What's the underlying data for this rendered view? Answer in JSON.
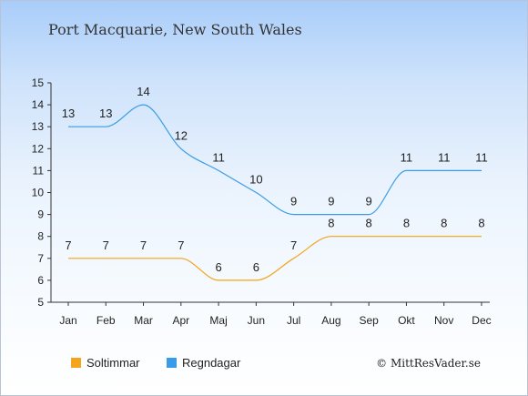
{
  "chart_data": {
    "type": "line",
    "title": "Port Macquarie, New South Wales",
    "categories": [
      "Jan",
      "Feb",
      "Mar",
      "Apr",
      "Maj",
      "Jun",
      "Jul",
      "Aug",
      "Sep",
      "Okt",
      "Nov",
      "Dec"
    ],
    "ylim": [
      5,
      15
    ],
    "yticks": [
      "5",
      "6",
      "7",
      "8",
      "9",
      "10",
      "11",
      "12",
      "13",
      "14",
      "15"
    ],
    "series": [
      {
        "name": "Soltimmar",
        "color": "#f5a31a",
        "values": [
          7,
          7,
          7,
          7,
          6,
          6,
          7,
          8,
          8,
          8,
          8,
          8
        ]
      },
      {
        "name": "Regndagar",
        "color": "#3a9be8",
        "values": [
          13,
          13,
          14,
          12,
          11,
          10,
          9,
          9,
          9,
          11,
          11,
          11
        ]
      }
    ],
    "legend": "bottom",
    "copyright": "© MittResVader.se"
  }
}
